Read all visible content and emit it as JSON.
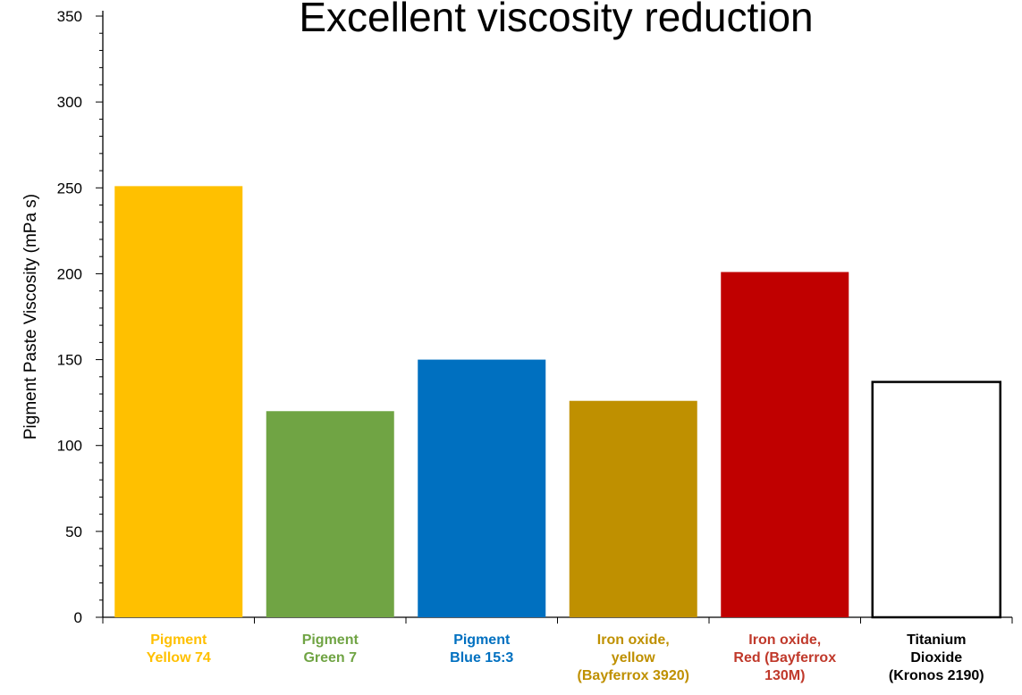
{
  "chart_data": {
    "type": "bar",
    "title": "Excellent viscosity reduction",
    "ylabel": "Pigment Paste Viscosity (mPa s)",
    "xlabel": "",
    "ylim": [
      0,
      350
    ],
    "yticks": [
      "0",
      "50",
      "100",
      "150",
      "200",
      "250",
      "300",
      "350"
    ],
    "categories": [
      [
        "Pigment",
        "Yellow 74"
      ],
      [
        "Pigment",
        "Green 7"
      ],
      [
        "Pigment",
        "Blue 15:3"
      ],
      [
        "Iron oxide,",
        "yellow",
        "(Bayferrox 3920)"
      ],
      [
        "Iron oxide,",
        "Red (Bayferrox",
        "130M)"
      ],
      [
        "Titanium",
        "Dioxide",
        "(Kronos 2190)"
      ]
    ],
    "values": [
      251,
      120,
      150,
      126,
      201,
      137
    ],
    "bar_colors": [
      "#FFC000",
      "#70A444",
      "#0070C0",
      "#BF9000",
      "#C00000",
      "#FFFFFF"
    ],
    "label_colors": [
      "#FFC000",
      "#70A444",
      "#0070C0",
      "#BF9000",
      "#C0392B",
      "#000000"
    ],
    "grid": false,
    "legend": "none"
  }
}
